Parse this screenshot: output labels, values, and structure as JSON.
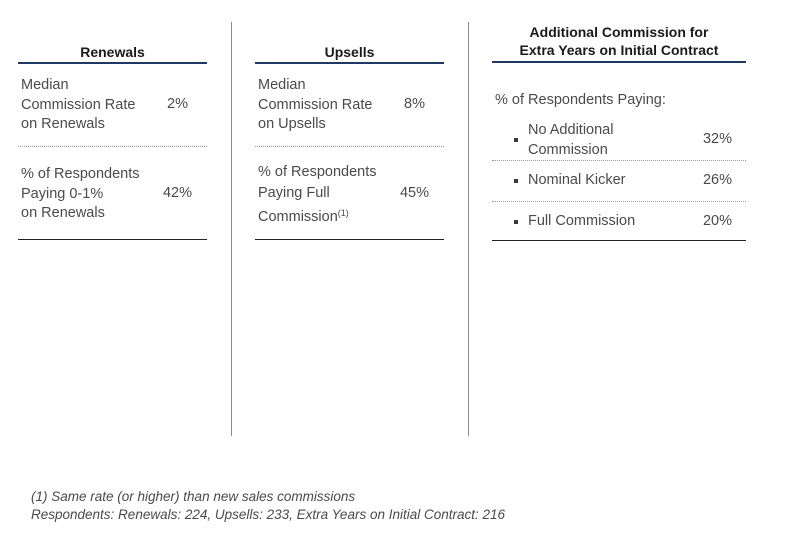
{
  "renewals": {
    "title": "Renewals",
    "row1": {
      "lines": [
        "Median",
        "Commission Rate",
        "on Renewals"
      ],
      "value": "2%"
    },
    "row2": {
      "lines": [
        "% of Respondents",
        "Paying 0-1%",
        "on Renewals"
      ],
      "value": "42%"
    }
  },
  "upsells": {
    "title": "Upsells",
    "row1": {
      "lines": [
        "Median",
        "Commission Rate",
        "on Upsells"
      ],
      "value": "8%"
    },
    "row2": {
      "lines": [
        "% of Respondents",
        "Paying Full",
        "Commission"
      ],
      "footnote_ref": "(1)",
      "value": "45%"
    }
  },
  "extra": {
    "title_line1": "Additional Commission for",
    "title_line2": "Extra Years on Initial Contract",
    "intro": "% of Respondents Paying:",
    "items": [
      {
        "lines": [
          "No Additional",
          "Commission"
        ],
        "value": "32%"
      },
      {
        "lines": [
          "Nominal Kicker"
        ],
        "value": "26%"
      },
      {
        "lines": [
          "Full Commission"
        ],
        "value": "20%"
      }
    ]
  },
  "footnotes": {
    "line1": "(1) Same rate (or higher) than new sales commissions",
    "line2": "Respondents: Renewals: 224, Upsells: 233, Extra Years on Initial Contract: 216"
  }
}
